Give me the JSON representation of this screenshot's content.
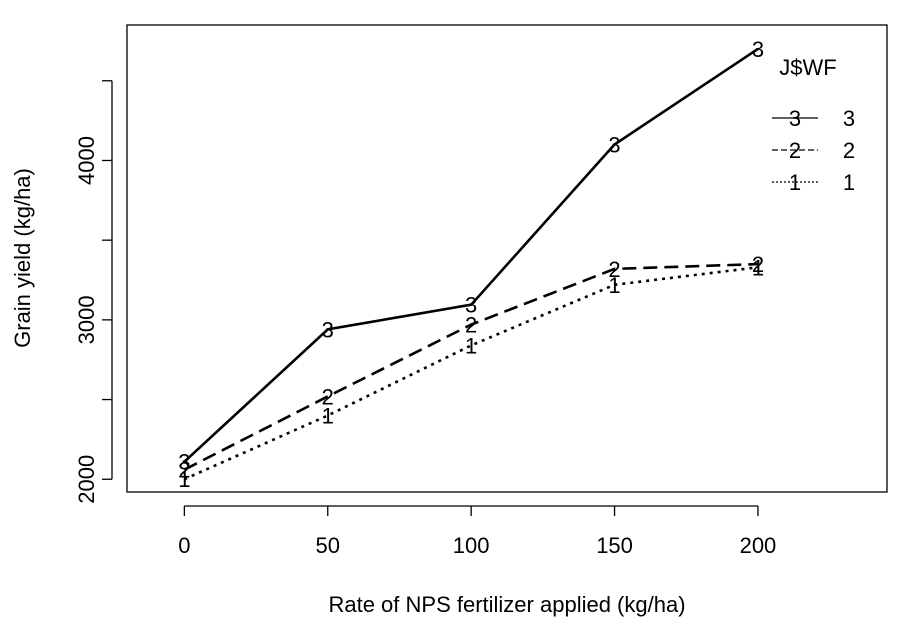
{
  "chart_data": {
    "type": "line",
    "title": "",
    "xlabel": "Rate of NPS fertilizer applied (kg/ha)",
    "ylabel": "Grain yield (kg/ha)",
    "x": [
      0,
      50,
      100,
      150,
      200
    ],
    "xlim": [
      -20,
      245
    ],
    "ylim": [
      1920,
      4850
    ],
    "x_ticks": [
      0,
      50,
      100,
      150,
      200
    ],
    "x_tick_labels": [
      "0",
      "50",
      "100",
      "150",
      "200"
    ],
    "y_ticks": [
      2000,
      2500,
      3000,
      3500,
      4000,
      4500
    ],
    "y_tick_labels": [
      "2000",
      "",
      "3000",
      "",
      "4000",
      ""
    ],
    "grid": false,
    "legend": {
      "title": "J$WF",
      "position": "top-right",
      "entries": [
        {
          "symbol": "3",
          "label": "3",
          "dash": "solid"
        },
        {
          "symbol": "2",
          "label": "2",
          "dash": "dashed"
        },
        {
          "symbol": "1",
          "label": "1",
          "dash": "dotted"
        }
      ]
    },
    "series": [
      {
        "name": "3",
        "symbol": "3",
        "dash": "solid",
        "values": [
          2110,
          2940,
          3095,
          4100,
          4700
        ]
      },
      {
        "name": "2",
        "symbol": "2",
        "dash": "dashed",
        "values": [
          2060,
          2520,
          2970,
          3320,
          3350
        ]
      },
      {
        "name": "1",
        "symbol": "1",
        "dash": "dotted",
        "values": [
          2000,
          2400,
          2840,
          3220,
          3330
        ]
      }
    ]
  }
}
